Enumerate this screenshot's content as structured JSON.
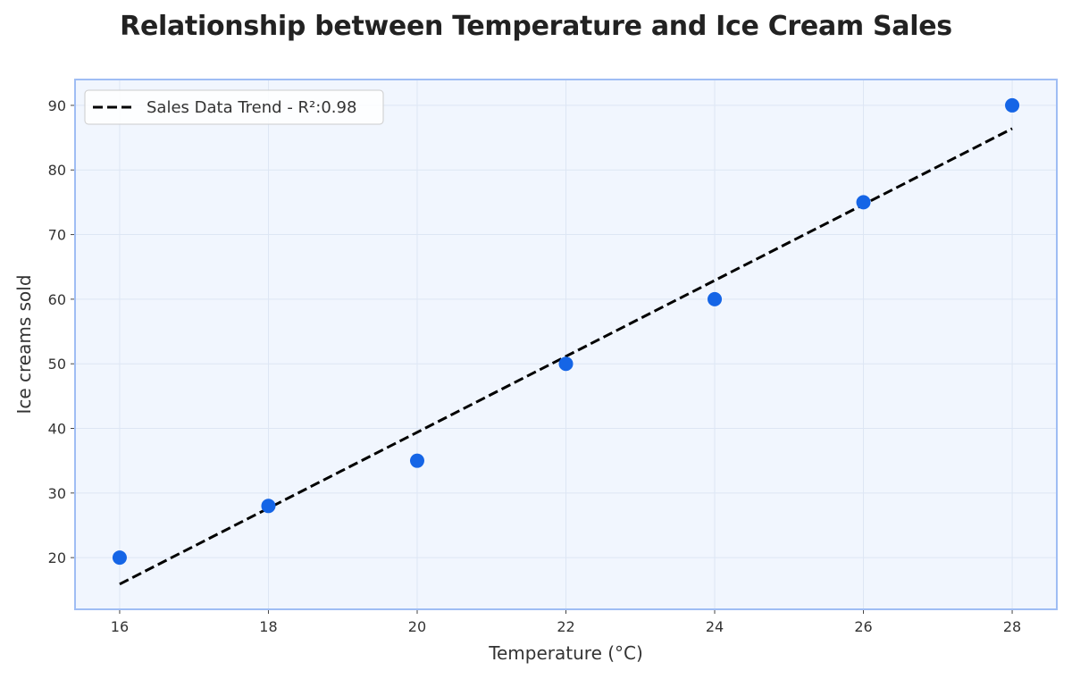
{
  "chart_data": {
    "type": "scatter",
    "title": "Relationship between Temperature and Ice Cream Sales",
    "xlabel": "Temperature (°C)",
    "ylabel": "Ice creams sold",
    "xlim": [
      15.4,
      28.6
    ],
    "ylim": [
      12,
      94
    ],
    "xticks": [
      16,
      18,
      20,
      22,
      24,
      26,
      28
    ],
    "yticks": [
      20,
      30,
      40,
      50,
      60,
      70,
      80,
      90
    ],
    "grid": true,
    "legend_position": "top-left",
    "series": [
      {
        "type": "scatter",
        "x": [
          16,
          18,
          20,
          22,
          24,
          26,
          28
        ],
        "y": [
          20,
          28,
          35,
          50,
          60,
          75,
          90
        ]
      },
      {
        "name": "Sales Data Trend - R²:0.98",
        "type": "line",
        "style": "dashed",
        "x": [
          16,
          28
        ],
        "y": [
          15.9,
          86.4
        ]
      }
    ],
    "colors": {
      "points": "#1565e6",
      "trend": "#000000",
      "plot_background": "#f1f6fe",
      "plot_border": "#9fbdf4",
      "grid": "#dde6f4"
    }
  }
}
